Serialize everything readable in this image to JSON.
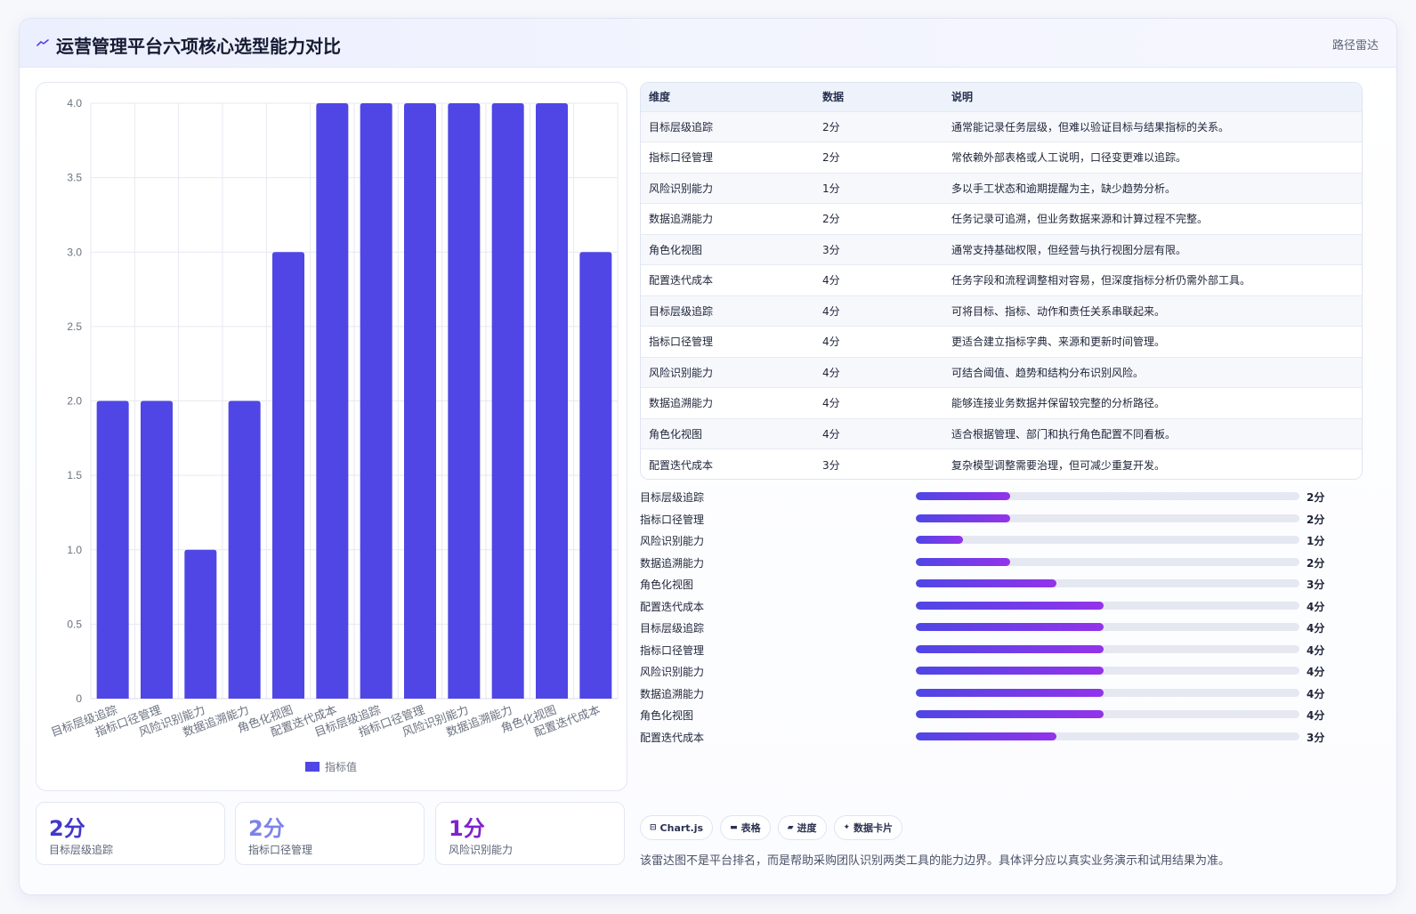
{
  "header": {
    "title": "运营管理平台六项核心选型能力对比",
    "tag": "路径雷达",
    "icon": "trend-line-icon"
  },
  "chart_data": {
    "type": "bar",
    "categories": [
      "目标层级追踪",
      "指标口径管理",
      "风险识别能力",
      "数据追溯能力",
      "角色化视图",
      "配置迭代成本",
      "目标层级追踪",
      "指标口径管理",
      "风险识别能力",
      "数据追溯能力",
      "角色化视图",
      "配置迭代成本"
    ],
    "series": [
      {
        "name": "指标值",
        "values": [
          2,
          2,
          1,
          2,
          3,
          4,
          4,
          4,
          4,
          4,
          4,
          3
        ],
        "color": "#4f46e5"
      }
    ],
    "yticks": [
      "0",
      "0.5",
      "1.0",
      "1.5",
      "2.0",
      "2.5",
      "3.0",
      "3.5",
      "4.0"
    ],
    "ylim": [
      0,
      4
    ],
    "grid": true,
    "legend_position": "bottom"
  },
  "table": {
    "headers": [
      "维度",
      "数据",
      "说明"
    ],
    "rows": [
      [
        "目标层级追踪",
        "2分",
        "通常能记录任务层级，但难以验证目标与结果指标的关系。"
      ],
      [
        "指标口径管理",
        "2分",
        "常依赖外部表格或人工说明，口径变更难以追踪。"
      ],
      [
        "风险识别能力",
        "1分",
        "多以手工状态和逾期提醒为主，缺少趋势分析。"
      ],
      [
        "数据追溯能力",
        "2分",
        "任务记录可追溯，但业务数据来源和计算过程不完整。"
      ],
      [
        "角色化视图",
        "3分",
        "通常支持基础权限，但经营与执行视图分层有限。"
      ],
      [
        "配置迭代成本",
        "4分",
        "任务字段和流程调整相对容易，但深度指标分析仍需外部工具。"
      ],
      [
        "目标层级追踪",
        "4分",
        "可将目标、指标、动作和责任关系串联起来。"
      ],
      [
        "指标口径管理",
        "4分",
        "更适合建立指标字典、来源和更新时间管理。"
      ],
      [
        "风险识别能力",
        "4分",
        "可结合阈值、趋势和结构分布识别风险。"
      ],
      [
        "数据追溯能力",
        "4分",
        "能够连接业务数据并保留较完整的分析路径。"
      ],
      [
        "角色化视图",
        "4分",
        "适合根据管理、部门和执行角色配置不同看板。"
      ],
      [
        "配置迭代成本",
        "3分",
        "复杂模型调整需要治理，但可减少重复开发。"
      ]
    ]
  },
  "progress": {
    "max": 4,
    "items": [
      {
        "label": "目标层级追踪",
        "value": 2,
        "text": "2分"
      },
      {
        "label": "指标口径管理",
        "value": 2,
        "text": "2分"
      },
      {
        "label": "风险识别能力",
        "value": 1,
        "text": "1分"
      },
      {
        "label": "数据追溯能力",
        "value": 2,
        "text": "2分"
      },
      {
        "label": "角色化视图",
        "value": 3,
        "text": "3分"
      },
      {
        "label": "配置迭代成本",
        "value": 4,
        "text": "4分"
      },
      {
        "label": "目标层级追踪",
        "value": 4,
        "text": "4分"
      },
      {
        "label": "指标口径管理",
        "value": 4,
        "text": "4分"
      },
      {
        "label": "风险识别能力",
        "value": 4,
        "text": "4分"
      },
      {
        "label": "数据追溯能力",
        "value": 4,
        "text": "4分"
      },
      {
        "label": "角色化视图",
        "value": 4,
        "text": "4分"
      },
      {
        "label": "配置迭代成本",
        "value": 3,
        "text": "3分"
      }
    ]
  },
  "stats": [
    {
      "value": "2分",
      "label": "目标层级追踪",
      "color": "#4338ca"
    },
    {
      "value": "2分",
      "label": "指标口径管理",
      "color": "#7c83e8"
    },
    {
      "value": "1分",
      "label": "风险识别能力",
      "color": "#7e22ce"
    }
  ],
  "chips": [
    {
      "icon": "chart-icon",
      "glyph": "⊟",
      "label": "Chart.js"
    },
    {
      "icon": "table-icon",
      "glyph": "▬",
      "label": "表格"
    },
    {
      "icon": "progress-icon",
      "glyph": "▰",
      "label": "进度"
    },
    {
      "icon": "sparkle-icon",
      "glyph": "✦",
      "label": "数据卡片"
    }
  ],
  "footnote": "该雷达图不是平台排名，而是帮助采购团队识别两类工具的能力边界。具体评分应以真实业务演示和试用结果为准。"
}
